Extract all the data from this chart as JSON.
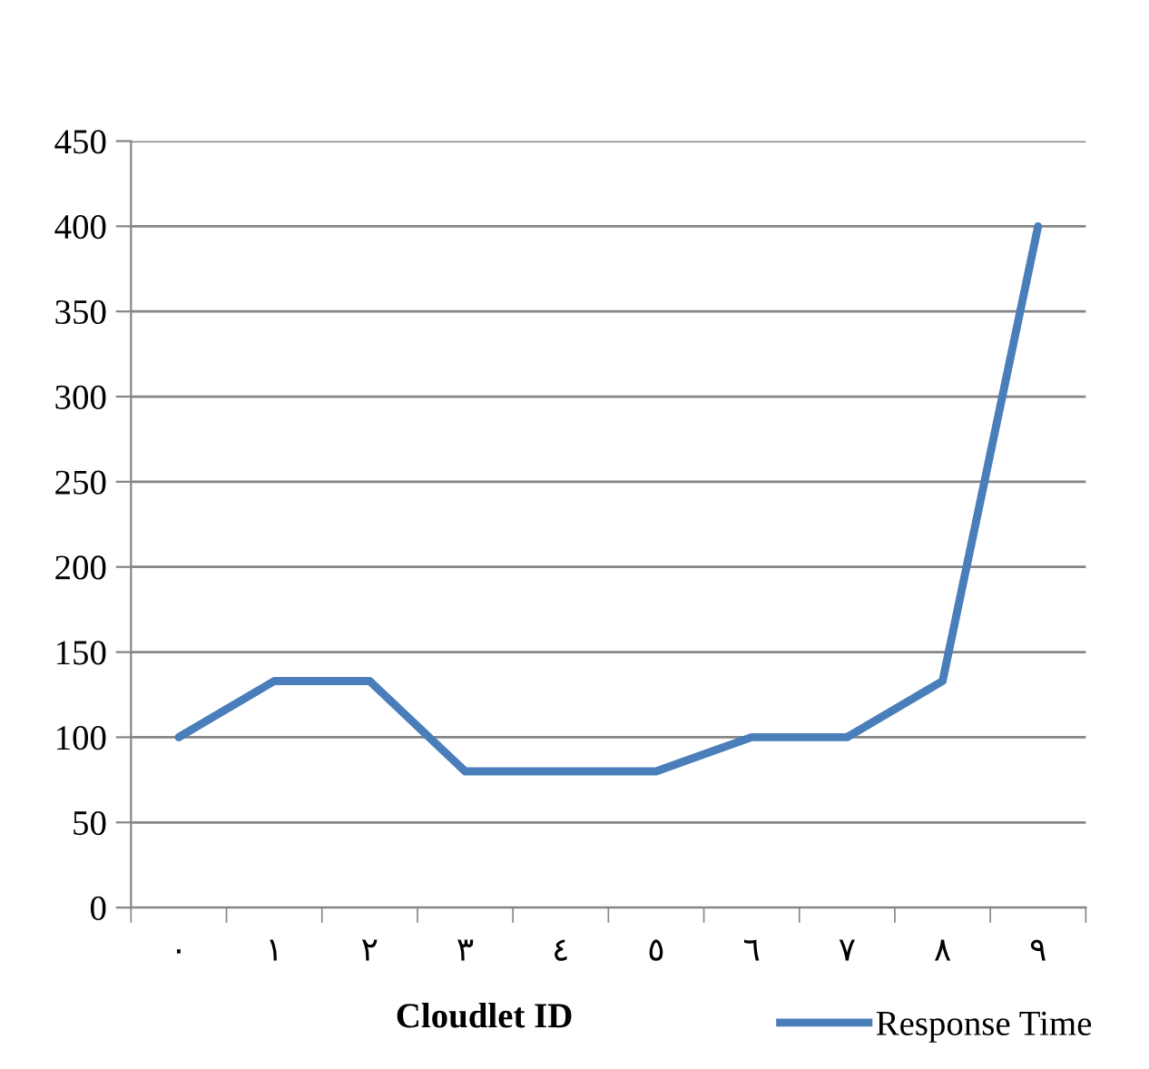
{
  "chart_data": {
    "type": "line",
    "xlabel": "Cloudlet ID",
    "categories": [
      "٠",
      "١",
      "٢",
      "٣",
      "٤",
      "٥",
      "٦",
      "٧",
      "٨",
      "٩"
    ],
    "series": [
      {
        "name": "Response Time",
        "color": "#4a7ebb",
        "values": [
          100,
          133,
          133,
          80,
          80,
          80,
          100,
          100,
          133,
          400
        ]
      }
    ],
    "ylim": [
      0,
      450
    ],
    "yticks": [
      0,
      50,
      100,
      150,
      200,
      250,
      300,
      350,
      400,
      450
    ],
    "grid": "y",
    "legend": "bottom right",
    "marker": "none",
    "line_style": "solid"
  }
}
